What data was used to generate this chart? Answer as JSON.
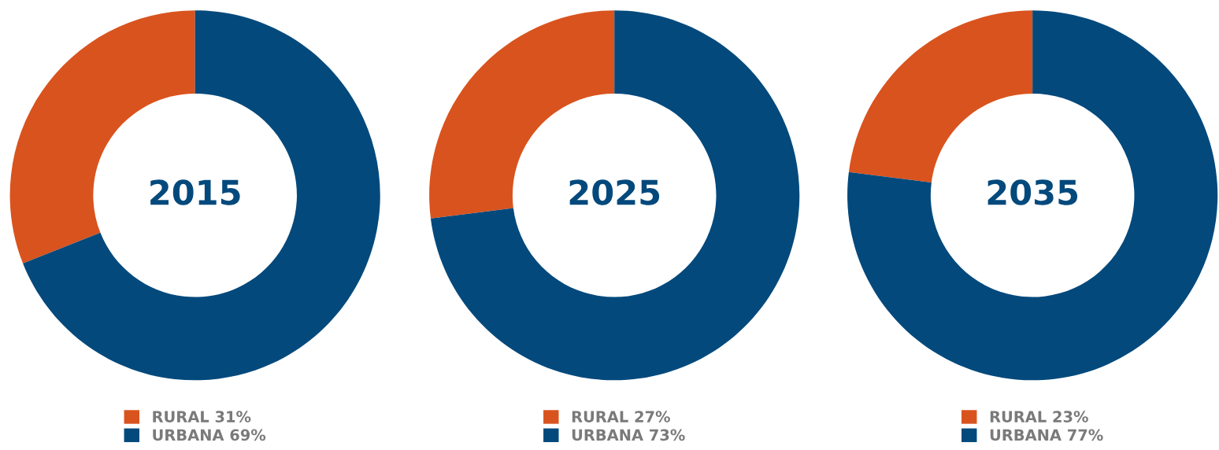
{
  "chart_data": [
    {
      "type": "donut",
      "title": "2015",
      "categories": [
        "RURAL",
        "URBANA"
      ],
      "values": [
        31,
        69
      ],
      "value_labels": [
        "31%",
        "69%"
      ],
      "colors": [
        "#d9531e",
        "#03497c"
      ],
      "legend": "bottom"
    },
    {
      "type": "donut",
      "title": "2025",
      "categories": [
        "RURAL",
        "URBANA"
      ],
      "values": [
        27,
        73
      ],
      "value_labels": [
        "27%",
        "73%"
      ],
      "colors": [
        "#d9531e",
        "#03497c"
      ],
      "legend": "bottom"
    },
    {
      "type": "donut",
      "title": "2035",
      "categories": [
        "RURAL",
        "URBANA"
      ],
      "values": [
        23,
        77
      ],
      "value_labels": [
        "23%",
        "77%"
      ],
      "colors": [
        "#d9531e",
        "#03497c"
      ],
      "legend": "bottom"
    }
  ]
}
